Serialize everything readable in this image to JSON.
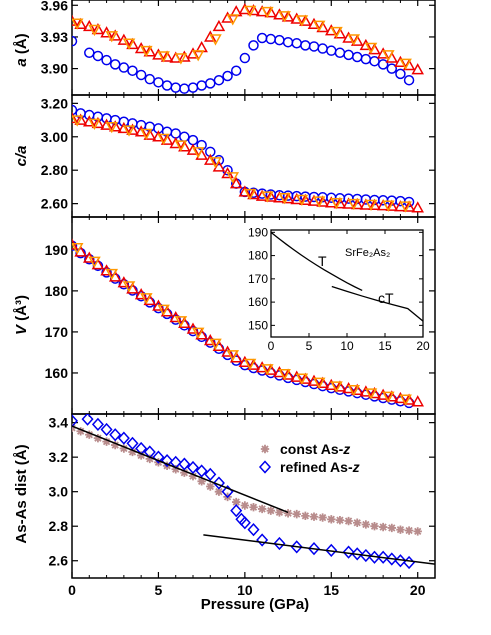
{
  "xlabel": "Pressure (GPa)",
  "xticks": [
    0,
    5,
    10,
    15,
    20
  ],
  "colors": {
    "circles": "#0000ee",
    "triangles_red": "#ee0000",
    "triangles_orange": "#ff9900",
    "diamonds": "#0000ee",
    "stars": "#b88c8c",
    "lines": "#000000"
  },
  "chart_data": [
    {
      "type": "scatter",
      "panel": "a",
      "ylabel_main": "a",
      "ylabel_unit": "(Å)",
      "xlim": [
        0,
        21
      ],
      "ylim": [
        3.875,
        3.965
      ],
      "yticks": [
        "3.90",
        "3.93",
        "3.96"
      ],
      "yticks_values": [
        3.9,
        3.93,
        3.96
      ],
      "grid": false,
      "series": [
        {
          "marker": "circle",
          "color": "#0000ee",
          "x": [
            0.0,
            1,
            1.5,
            2,
            2.5,
            3,
            3.5,
            4,
            4.5,
            5,
            5.5,
            6,
            6.5,
            7,
            7.5,
            8,
            8.5,
            9,
            9.5,
            10,
            10.5,
            11,
            11.5,
            12,
            12.5,
            13,
            13.5,
            14,
            14.5,
            15,
            15.5,
            16,
            16.5,
            17,
            17.5,
            18,
            18.5,
            19,
            19.5
          ],
          "y": [
            3.926,
            3.915,
            3.912,
            3.908,
            3.904,
            3.901,
            3.898,
            3.894,
            3.89,
            3.887,
            3.884,
            3.882,
            3.881,
            3.882,
            3.884,
            3.886,
            3.889,
            3.893,
            3.898,
            3.91,
            3.922,
            3.929,
            3.928,
            3.927,
            3.925,
            3.924,
            3.922,
            3.921,
            3.919,
            3.917,
            3.915,
            3.913,
            3.911,
            3.909,
            3.907,
            3.904,
            3.9,
            3.895,
            3.889
          ]
        },
        {
          "marker": "triangle",
          "color": "#ee0000",
          "x": [
            0,
            0.5,
            1,
            1.5,
            2,
            2.5,
            3,
            3.5,
            4,
            4.5,
            5,
            5.5,
            6,
            6.5,
            7,
            7.5,
            8,
            8.5,
            9,
            9.5,
            10,
            10.5,
            11,
            11.5,
            12,
            12.5,
            13,
            13.5,
            14,
            14.5,
            15,
            15.5,
            16,
            16.5,
            17,
            17.5,
            18,
            18.5,
            19,
            19.5,
            20
          ],
          "y": [
            3.945,
            3.942,
            3.94,
            3.937,
            3.934,
            3.931,
            3.927,
            3.923,
            3.919,
            3.916,
            3.913,
            3.911,
            3.91,
            3.911,
            3.914,
            3.92,
            3.93,
            3.94,
            3.948,
            3.954,
            3.956,
            3.955,
            3.954,
            3.953,
            3.951,
            3.949,
            3.947,
            3.945,
            3.942,
            3.939,
            3.936,
            3.933,
            3.929,
            3.926,
            3.922,
            3.918,
            3.914,
            3.91,
            3.906,
            3.903,
            3.899
          ]
        },
        {
          "marker": "triangle-down",
          "color": "#ff9900",
          "x": [
            0.3,
            1.3,
            2.3,
            3.3,
            4.3,
            5.3,
            6.3,
            7.3,
            8.3,
            9.3,
            10.3,
            11.3,
            12.3,
            13.3,
            14.3,
            15.3,
            16.3,
            17.3,
            18.3,
            19.3
          ],
          "y": [
            3.943,
            3.937,
            3.931,
            3.924,
            3.917,
            3.912,
            3.91,
            3.913,
            3.928,
            3.947,
            3.955,
            3.954,
            3.95,
            3.946,
            3.941,
            3.935,
            3.928,
            3.92,
            3.913,
            3.905
          ]
        }
      ]
    },
    {
      "type": "scatter",
      "panel": "c/a",
      "ylabel_main": "c/a",
      "xlim": [
        0,
        21
      ],
      "ylim": [
        2.52,
        3.25
      ],
      "yticks": [
        "2.60",
        "2.80",
        "3.00",
        "3.20"
      ],
      "yticks_values": [
        2.6,
        2.8,
        3.0,
        3.2
      ],
      "grid": false,
      "series": [
        {
          "marker": "circle",
          "color": "#0000ee",
          "x": [
            0,
            0.5,
            1,
            1.5,
            2,
            2.5,
            3,
            3.5,
            4,
            4.5,
            5,
            5.5,
            6,
            6.5,
            7,
            7.5,
            8,
            8.5,
            9,
            9.5,
            10,
            10.5,
            11,
            11.5,
            12,
            12.5,
            13,
            13.5,
            14,
            14.5,
            15,
            15.5,
            16,
            16.5,
            17,
            17.5,
            18,
            18.5,
            19,
            19.5
          ],
          "y": [
            3.16,
            3.14,
            3.13,
            3.12,
            3.11,
            3.1,
            3.09,
            3.08,
            3.07,
            3.06,
            3.05,
            3.03,
            3.02,
            3.0,
            2.98,
            2.95,
            2.91,
            2.86,
            2.8,
            2.72,
            2.67,
            2.665,
            2.66,
            2.655,
            2.65,
            2.648,
            2.645,
            2.642,
            2.64,
            2.638,
            2.635,
            2.632,
            2.63,
            2.628,
            2.625,
            2.622,
            2.62,
            2.618,
            2.615,
            2.61
          ]
        },
        {
          "marker": "triangle",
          "color": "#ee0000",
          "x": [
            0,
            0.5,
            1,
            1.5,
            2,
            2.5,
            3,
            3.5,
            4,
            4.5,
            5,
            5.5,
            6,
            6.5,
            7,
            7.5,
            8,
            8.5,
            9,
            9.5,
            10,
            10.5,
            11,
            11.5,
            12,
            12.5,
            13,
            13.5,
            14,
            14.5,
            15,
            15.5,
            16,
            16.5,
            17,
            17.5,
            18,
            18.5,
            19,
            19.5,
            20
          ],
          "y": [
            3.11,
            3.1,
            3.09,
            3.08,
            3.07,
            3.06,
            3.05,
            3.04,
            3.03,
            3.01,
            3.0,
            2.98,
            2.96,
            2.94,
            2.92,
            2.89,
            2.86,
            2.82,
            2.78,
            2.72,
            2.67,
            2.655,
            2.645,
            2.64,
            2.635,
            2.63,
            2.625,
            2.62,
            2.615,
            2.61,
            2.605,
            2.6,
            2.598,
            2.595,
            2.592,
            2.59,
            2.588,
            2.585,
            2.582,
            2.58,
            2.575
          ]
        },
        {
          "marker": "triangle-down",
          "color": "#ff9900",
          "x": [
            0.3,
            1.3,
            2.3,
            3.3,
            4.3,
            5.3,
            6.3,
            7.3,
            8.3,
            9.3,
            10.3,
            11.3,
            12.3,
            13.3,
            14.3,
            15.3,
            16.3,
            17.3,
            18.3,
            19.3
          ],
          "y": [
            3.1,
            3.08,
            3.06,
            3.04,
            3.02,
            2.99,
            2.95,
            2.91,
            2.85,
            2.76,
            2.66,
            2.645,
            2.635,
            2.625,
            2.615,
            2.605,
            2.6,
            2.595,
            2.59,
            2.585
          ]
        }
      ]
    },
    {
      "type": "scatter",
      "panel": "V",
      "ylabel_main": "V",
      "ylabel_unit": "(Å³)",
      "xlim": [
        0,
        21
      ],
      "ylim": [
        150,
        198
      ],
      "yticks": [
        "160",
        "170",
        "180",
        "190"
      ],
      "yticks_values": [
        160,
        170,
        180,
        190
      ],
      "grid": false,
      "series": [
        {
          "marker": "circle",
          "color": "#0000ee",
          "x": [
            0,
            0.5,
            1,
            1.5,
            2,
            2.5,
            3,
            3.5,
            4,
            4.5,
            5,
            5.5,
            6,
            6.5,
            7,
            7.5,
            8,
            8.5,
            9,
            9.5,
            10,
            10.5,
            11,
            11.5,
            12,
            12.5,
            13,
            13.5,
            14,
            14.5,
            15,
            15.5,
            16,
            16.5,
            17,
            17.5,
            18,
            18.5,
            19,
            19.5
          ],
          "y": [
            191.0,
            189.2,
            187.7,
            186.1,
            184.5,
            183.0,
            181.6,
            180.1,
            178.7,
            177.2,
            175.8,
            174.4,
            173.0,
            171.6,
            170.2,
            168.8,
            167.4,
            165.9,
            164.4,
            163.0,
            161.9,
            161.2,
            160.6,
            160.0,
            159.4,
            158.8,
            158.3,
            157.8,
            157.3,
            156.8,
            156.3,
            155.9,
            155.5,
            155.1,
            154.7,
            154.3,
            153.9,
            153.5,
            153.1,
            152.7
          ]
        },
        {
          "marker": "triangle",
          "color": "#ee0000",
          "x": [
            0,
            0.5,
            1,
            1.5,
            2,
            2.5,
            3,
            3.5,
            4,
            4.5,
            5,
            5.5,
            6,
            6.5,
            7,
            7.5,
            8,
            8.5,
            9,
            9.5,
            10,
            10.5,
            11,
            11.5,
            12,
            12.5,
            13,
            13.5,
            14,
            14.5,
            15,
            15.5,
            16,
            16.5,
            17,
            17.5,
            18,
            18.5,
            19,
            19.5,
            20
          ],
          "y": [
            191.2,
            189.5,
            188.0,
            186.4,
            184.9,
            183.4,
            182.0,
            180.5,
            179.1,
            177.7,
            176.3,
            174.9,
            173.5,
            172.1,
            170.7,
            169.3,
            167.9,
            166.5,
            165.1,
            163.7,
            162.6,
            161.9,
            161.3,
            160.7,
            160.1,
            159.5,
            159.0,
            158.5,
            158.0,
            157.5,
            157.0,
            156.6,
            156.2,
            155.8,
            155.4,
            155.0,
            154.6,
            154.2,
            153.8,
            153.4,
            153.0
          ]
        },
        {
          "marker": "triangle-down",
          "color": "#ff9900",
          "x": [
            0.3,
            1.3,
            2.3,
            3.3,
            4.3,
            5.3,
            6.3,
            7.3,
            8.3,
            9.3,
            10.3,
            11.3,
            12.3,
            13.3,
            14.3,
            15.3,
            16.3,
            17.3,
            18.3,
            19.3
          ],
          "y": [
            190.5,
            187.2,
            184.2,
            181.2,
            178.3,
            175.5,
            172.7,
            169.9,
            167.2,
            164.4,
            162.3,
            161.0,
            159.8,
            158.7,
            157.7,
            156.8,
            155.9,
            155.1,
            154.3,
            153.6
          ]
        }
      ],
      "inset": {
        "type": "line",
        "xlim": [
          0,
          20
        ],
        "ylim": [
          145,
          191
        ],
        "xticks": [
          0,
          5,
          10,
          15,
          20
        ],
        "yticks": [
          150,
          160,
          170,
          180,
          190
        ],
        "label_T": "T",
        "label_cT": "cT",
        "formula": "SrFe₂As₂",
        "series": [
          {
            "name": "T",
            "x": [
              0,
              1,
              2,
              3,
              4,
              5,
              6,
              7,
              8,
              9,
              10,
              11,
              12
            ],
            "y": [
              190,
              187.4,
              184.9,
              182.5,
              180.2,
              178.0,
              175.9,
              173.9,
              172.0,
              170.1,
              168.3,
              166.6,
              165.0
            ]
          },
          {
            "name": "cT",
            "x": [
              8,
              10,
              12,
              14,
              16,
              18,
              20
            ],
            "y": [
              166.7,
              164.6,
              162.6,
              160.7,
              158.9,
              157.2,
              151.8
            ]
          }
        ]
      }
    },
    {
      "type": "scatter",
      "panel": "As-As",
      "ylabel_main": "As-As dist (Å)",
      "xlim": [
        0,
        21
      ],
      "ylim": [
        2.5,
        3.45
      ],
      "yticks": [
        "2.6",
        "2.8",
        "3.0",
        "3.2",
        "3.4"
      ],
      "yticks_values": [
        2.6,
        2.8,
        3.0,
        3.2,
        3.4
      ],
      "legend_placement": "top-right",
      "grid": false,
      "series": [
        {
          "name": "const As-z",
          "marker": "star",
          "color": "#b88c8c",
          "x": [
            0,
            0.5,
            1,
            1.5,
            2,
            2.5,
            3,
            3.5,
            4,
            4.5,
            5,
            5.5,
            6,
            6.5,
            7,
            7.5,
            8,
            8.5,
            9,
            9.5,
            10,
            10.5,
            11,
            11.5,
            12,
            12.5,
            13,
            13.5,
            14,
            14.5,
            15,
            15.5,
            16,
            16.5,
            17,
            17.5,
            18,
            18.5,
            19,
            19.5,
            20
          ],
          "y": [
            3.37,
            3.35,
            3.33,
            3.31,
            3.29,
            3.27,
            3.25,
            3.23,
            3.21,
            3.19,
            3.17,
            3.15,
            3.13,
            3.11,
            3.09,
            3.06,
            3.03,
            3.0,
            2.97,
            2.94,
            2.92,
            2.91,
            2.9,
            2.89,
            2.88,
            2.875,
            2.87,
            2.86,
            2.855,
            2.85,
            2.84,
            2.835,
            2.83,
            2.82,
            2.81,
            2.8,
            2.795,
            2.79,
            2.78,
            2.775,
            2.77
          ]
        },
        {
          "name": "refined As-z",
          "marker": "diamond",
          "color": "#0000ee",
          "x": [
            0,
            0.9,
            1.5,
            2,
            2.5,
            3,
            3.5,
            4,
            4.5,
            5,
            5.5,
            6,
            6.5,
            7,
            7.5,
            8,
            8.5,
            9,
            9.5,
            9.8,
            10,
            10.5,
            11,
            12,
            13,
            14,
            15,
            16,
            16.5,
            17,
            17.5,
            18,
            18.5,
            19,
            19.5
          ],
          "y": [
            3.41,
            3.42,
            3.39,
            3.36,
            3.33,
            3.31,
            3.28,
            3.25,
            3.23,
            3.2,
            3.18,
            3.17,
            3.16,
            3.14,
            3.12,
            3.1,
            3.05,
            3.0,
            2.89,
            2.84,
            2.82,
            2.78,
            2.72,
            2.7,
            2.68,
            2.67,
            2.66,
            2.65,
            2.64,
            2.63,
            2.62,
            2.62,
            2.61,
            2.6,
            2.59
          ]
        }
      ],
      "fit_lines": [
        {
          "x": [
            0,
            12.5
          ],
          "y": [
            3.38,
            2.88
          ]
        },
        {
          "x": [
            7.6,
            21
          ],
          "y": [
            2.75,
            2.58
          ]
        }
      ]
    }
  ]
}
